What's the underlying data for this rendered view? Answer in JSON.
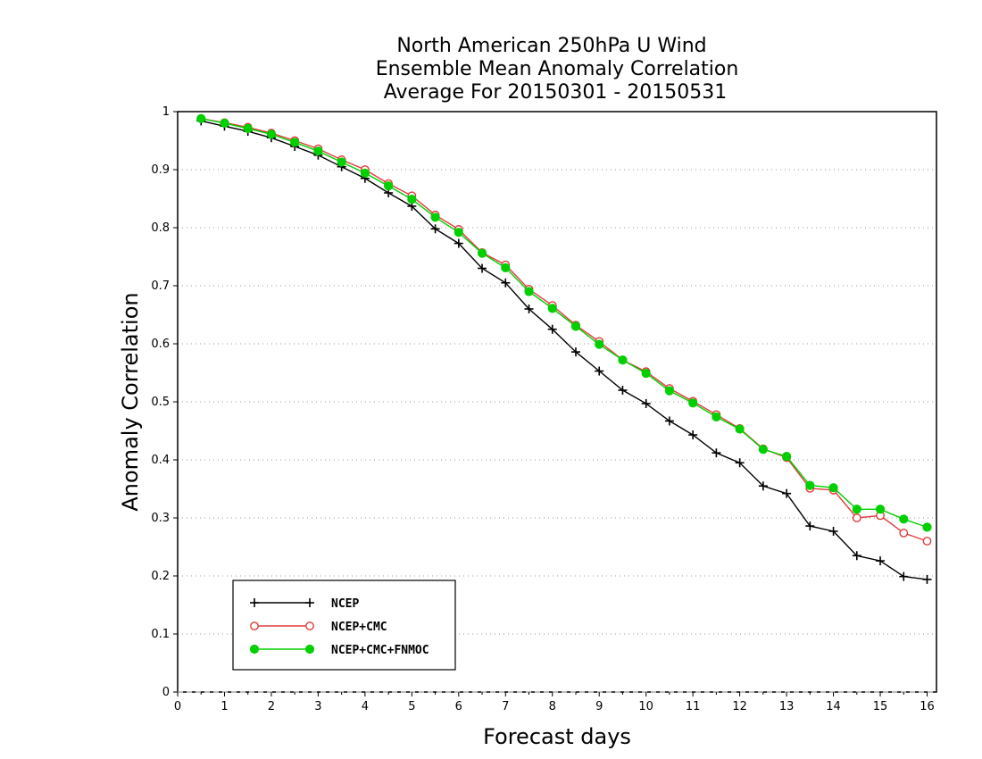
{
  "chart_data": {
    "type": "line",
    "title": [
      "North American 250hPa U Wind",
      "Ensemble Mean Anomaly Correlation",
      "Average For 20150301 - 20150531"
    ],
    "xlabel": "Forecast days",
    "ylabel": "Anomaly Correlation",
    "xlim": [
      0,
      16.2
    ],
    "ylim": [
      0,
      1
    ],
    "xticks": [
      "0",
      "1",
      "2",
      "3",
      "4",
      "5",
      "6",
      "7",
      "8",
      "9",
      "10",
      "11",
      "12",
      "13",
      "14",
      "15",
      "16"
    ],
    "yticks": [
      "0",
      "0.1",
      "0.2",
      "0.3",
      "0.4",
      "0.5",
      "0.6",
      "0.7",
      "0.8",
      "0.9",
      "1"
    ],
    "grid": "horizontal dotted",
    "legend_position": "bottom-left",
    "x": [
      0.5,
      1,
      1.5,
      2,
      2.5,
      3,
      3.5,
      4,
      4.5,
      5,
      5.5,
      6,
      6.5,
      7,
      7.5,
      8,
      8.5,
      9,
      9.5,
      10,
      10.5,
      11,
      11.5,
      12,
      12.5,
      13,
      13.5,
      14,
      14.5,
      15,
      15.5,
      16
    ],
    "series": [
      {
        "name": "NCEP",
        "color": "#000000",
        "marker": "plus",
        "values": [
          0.984,
          0.975,
          0.966,
          0.955,
          0.94,
          0.925,
          0.905,
          0.885,
          0.86,
          0.837,
          0.798,
          0.773,
          0.73,
          0.705,
          0.66,
          0.625,
          0.586,
          0.553,
          0.52,
          0.497,
          0.467,
          0.443,
          0.412,
          0.395,
          0.355,
          0.342,
          0.286,
          0.277,
          0.235,
          0.226,
          0.199,
          0.194
        ]
      },
      {
        "name": "NCEP+CMC",
        "color": "#e03b3b",
        "marker": "open-circle",
        "values": [
          0.988,
          0.981,
          0.973,
          0.963,
          0.95,
          0.936,
          0.917,
          0.9,
          0.876,
          0.855,
          0.822,
          0.797,
          0.757,
          0.736,
          0.694,
          0.666,
          0.632,
          0.604,
          0.572,
          0.552,
          0.523,
          0.501,
          0.478,
          0.454,
          0.419,
          0.404,
          0.351,
          0.348,
          0.3,
          0.304,
          0.274,
          0.26
        ]
      },
      {
        "name": "NCEP+CMC+FNMOC",
        "color": "#00d000",
        "marker": "filled-circle",
        "values": [
          0.988,
          0.98,
          0.971,
          0.961,
          0.947,
          0.932,
          0.913,
          0.894,
          0.872,
          0.849,
          0.818,
          0.792,
          0.756,
          0.731,
          0.69,
          0.661,
          0.63,
          0.599,
          0.572,
          0.549,
          0.519,
          0.498,
          0.474,
          0.453,
          0.418,
          0.406,
          0.356,
          0.352,
          0.315,
          0.315,
          0.298,
          0.284
        ]
      }
    ]
  }
}
